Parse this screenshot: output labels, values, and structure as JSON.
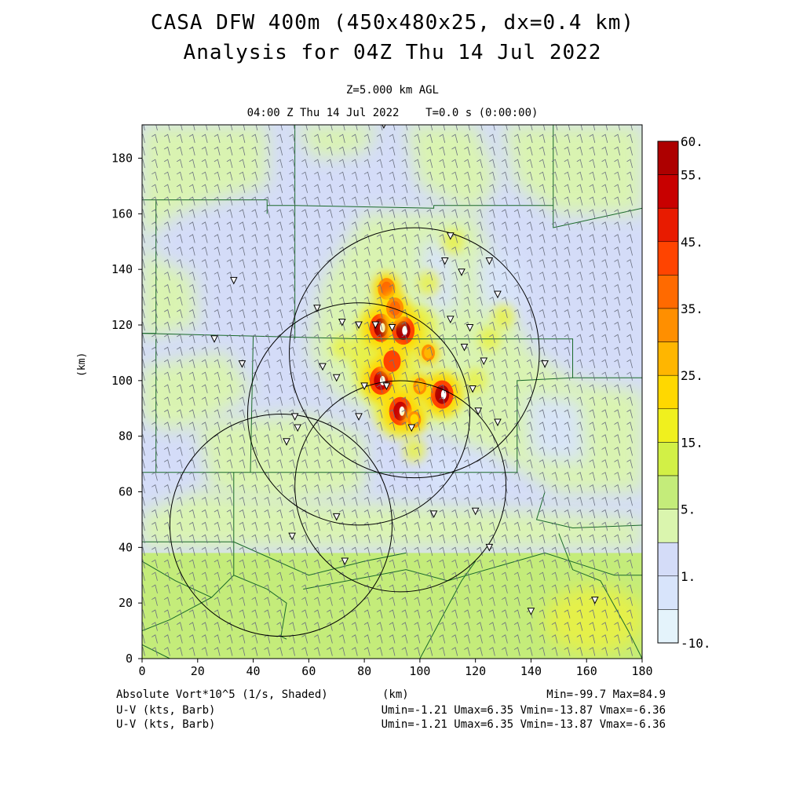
{
  "chart_data": {
    "type": "heatmap",
    "title": "CASA DFW 400m (450x480x25, dx=0.4 km)",
    "subtitle": "Analysis for 04Z Thu 14 Jul 2022",
    "level_label": "Z=5.000 km AGL",
    "time_label": "04:00 Z Thu 14 Jul 2022    T=0.0 s (0:00:00)",
    "xlabel": "(km)",
    "ylabel": "(km)",
    "xlim": [
      0,
      180
    ],
    "ylim": [
      0,
      192
    ],
    "x_ticks": [
      "0",
      "20",
      "40",
      "60",
      "80",
      "100",
      "120",
      "140",
      "160",
      "180"
    ],
    "y_ticks": [
      "0",
      "20",
      "40",
      "60",
      "80",
      "100",
      "120",
      "140",
      "160",
      "180"
    ],
    "field_label": "Absolute Vort*10^5 (1/s, Shaded)",
    "min_max_label": "Min=-99.7 Max=84.9",
    "vector_labels": [
      {
        "label": "U-V (kts, Barb)",
        "stats": "Umin=-1.21 Umax=6.35 Vmin=-13.87 Vmax=-6.36"
      },
      {
        "label": "U-V (kts, Barb)",
        "stats": "Umin=-1.21 Umax=6.35 Vmin=-13.87 Vmax=-6.36"
      }
    ],
    "colorbar": {
      "labels": [
        "60.",
        "55.",
        "45.",
        "35.",
        "25.",
        "15.",
        "5.",
        "1.",
        "-10."
      ],
      "colors": [
        "#ad0000",
        "#c80000",
        "#e81b00",
        "#ff4400",
        "#ff6a00",
        "#ff8f00",
        "#ffb600",
        "#ffd800",
        "#f0f01e",
        "#d2f046",
        "#c4ec7a",
        "#daf5ae",
        "#d4dcf8",
        "#d8e4fb",
        "#e4f3fb"
      ]
    },
    "background_regions": [
      {
        "name": "bg",
        "value": 2,
        "color": "#d4dcf8"
      },
      {
        "name": "south-band",
        "value": 12,
        "color": "#c4ec7a"
      }
    ],
    "vorticity_cells": [
      {
        "x": 86,
        "y": 119,
        "value": 60
      },
      {
        "x": 94,
        "y": 118,
        "value": 60
      },
      {
        "x": 86,
        "y": 100,
        "value": 55
      },
      {
        "x": 93,
        "y": 89,
        "value": 55
      },
      {
        "x": 108,
        "y": 95,
        "value": 60
      },
      {
        "x": 88,
        "y": 133,
        "value": 40
      },
      {
        "x": 91,
        "y": 126,
        "value": 40
      },
      {
        "x": 90,
        "y": 107,
        "value": 45
      },
      {
        "x": 103,
        "y": 110,
        "value": 30
      },
      {
        "x": 100,
        "y": 98,
        "value": 30
      },
      {
        "x": 98,
        "y": 86,
        "value": 25
      }
    ],
    "radar_rings": [
      {
        "cx": 78,
        "cy": 88,
        "r": 40
      },
      {
        "cx": 98,
        "cy": 110,
        "r": 45
      },
      {
        "cx": 93,
        "cy": 62,
        "r": 38
      },
      {
        "cx": 50,
        "cy": 48,
        "r": 40
      }
    ],
    "stations": [
      [
        87,
        192
      ],
      [
        33,
        136
      ],
      [
        26,
        115
      ],
      [
        36,
        106
      ],
      [
        65,
        105
      ],
      [
        70,
        101
      ],
      [
        55,
        87
      ],
      [
        56,
        83
      ],
      [
        52,
        78
      ],
      [
        70,
        51
      ],
      [
        54,
        44
      ],
      [
        73,
        35
      ],
      [
        111,
        152
      ],
      [
        109,
        143
      ],
      [
        115,
        139
      ],
      [
        125,
        143
      ],
      [
        128,
        131
      ],
      [
        111,
        122
      ],
      [
        118,
        119
      ],
      [
        116,
        112
      ],
      [
        123,
        107
      ],
      [
        145,
        106
      ],
      [
        119,
        97
      ],
      [
        121,
        89
      ],
      [
        128,
        85
      ],
      [
        63,
        126
      ],
      [
        72,
        121
      ],
      [
        78,
        120
      ],
      [
        84,
        120
      ],
      [
        90,
        119
      ],
      [
        80,
        98
      ],
      [
        88,
        98
      ],
      [
        78,
        87
      ],
      [
        97,
        83
      ],
      [
        105,
        52
      ],
      [
        120,
        53
      ],
      [
        125,
        40
      ],
      [
        140,
        17
      ],
      [
        163,
        21
      ]
    ],
    "wind_barb": {
      "u": 2.5,
      "v": -10
    }
  }
}
